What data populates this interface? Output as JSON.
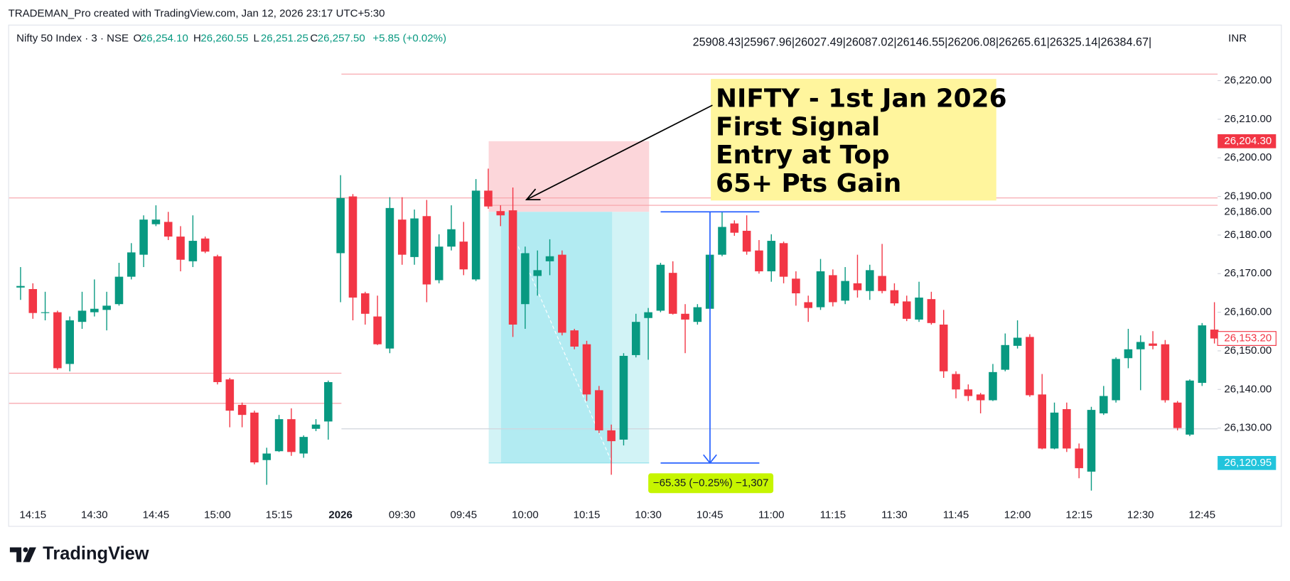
{
  "chart_data": {
    "type": "candlestick",
    "watermark": "TRADEMAN_Pro created with TradingView.com, Jan 12, 2026 23:17 UTC+5:30",
    "symbol": "Nifty 50 Index · 3 · NSE",
    "legend_ohlc": [
      {
        "key": "O",
        "value": "26,254.10"
      },
      {
        "key": "H",
        "value": "26,260.55"
      },
      {
        "key": "L",
        "value": "26,251.25"
      },
      {
        "key": "C",
        "value": "26,257.50"
      }
    ],
    "change": "+5.85 (+0.02%)",
    "levels_text": "25908.43|25967.96|26027.49|26087.02|26146.55|26206.08|26265.61|26325.14|26384.67|",
    "currency": "INR",
    "annotation": [
      "NIFTY - 1st Jan 2026",
      "First Signal",
      "Entry at Top",
      "65+ Pts Gain"
    ],
    "measure_label": "−65.35 (−0.25%) −1,307",
    "footer": "TradingView",
    "up_color": "#089981",
    "down_color": "#f23645",
    "categories": [
      null,
      "14:15",
      null,
      null,
      null,
      null,
      "14:30",
      null,
      null,
      null,
      null,
      "14:45",
      null,
      null,
      null,
      null,
      "15:00",
      null,
      null,
      null,
      null,
      "15:15",
      null,
      null,
      null,
      null,
      "2026",
      null,
      null,
      null,
      null,
      "09:30",
      null,
      null,
      null,
      null,
      "09:45",
      null,
      null,
      null,
      null,
      "10:00",
      null,
      null,
      null,
      null,
      "10:15",
      null,
      null,
      null,
      null,
      "10:30",
      null,
      null,
      null,
      null,
      "10:45",
      null,
      null,
      null,
      null,
      "11:00",
      null,
      null,
      null,
      null,
      "11:15",
      null,
      null,
      null,
      null,
      "11:30",
      null,
      null,
      null,
      null,
      "11:45",
      null,
      null,
      null,
      null,
      "12:00",
      null,
      null,
      null,
      null,
      "12:15",
      null,
      null,
      null,
      null,
      "12:30",
      null,
      null,
      null,
      null,
      "12:45",
      null
    ],
    "open": [
      26166.4,
      26166.0,
      26159.8,
      26160.0,
      26146.6,
      26157.5,
      26160.0,
      26160.6,
      26162.1,
      26169.2,
      26174.9,
      26182.8,
      26183.4,
      26179.6,
      26173.2,
      26179.1,
      26174.5,
      26142.6,
      26136.0,
      26134.0,
      26121.7,
      26124.0,
      26132.3,
      26123.4,
      26129.8,
      26131.7,
      26175.3,
      26190.0,
      26164.9,
      26158.9,
      26150.6,
      26184.0,
      26174.3,
      26184.9,
      26168.3,
      26177.0,
      26178.3,
      26168.5,
      26191.5,
      26186.2,
      26186.4,
      26162.1,
      26169.4,
      26173.2,
      26174.9,
      26155.3,
      26151.7,
      26139.8,
      26129.4,
      26127.0,
      26148.9,
      26158.5,
      26160.4,
      26170.2,
      26159.6,
      26157.5,
      26160.9,
      26174.9,
      26183.0,
      26181.1,
      26176.0,
      26170.6,
      26177.9,
      26168.7,
      26162.6,
      26161.3,
      26169.6,
      26163.0,
      26167.5,
      26165.5,
      26169.4,
      26165.7,
      26162.8,
      26158.1,
      26163.4,
      26156.8,
      26144.0,
      26140.0,
      26138.7,
      26137.2,
      26145.1,
      26151.3,
      26153.6,
      26138.7,
      26124.7,
      26134.9,
      26124.7,
      26118.7,
      26133.8,
      26137.2,
      26148.1,
      26150.4,
      26151.9,
      26151.7,
      26136.6,
      26128.3,
      26141.7,
      26155.5
    ],
    "high": [
      26171.7,
      26167.5,
      26165.3,
      26160.4,
      26158.9,
      26165.3,
      26168.5,
      26165.3,
      26172.8,
      26177.9,
      26185.1,
      26187.7,
      26186.0,
      26182.3,
      26185.1,
      26179.6,
      26174.9,
      26143.0,
      26136.6,
      26134.5,
      26124.9,
      26133.4,
      26135.1,
      26128.1,
      26132.3,
      26142.3,
      26195.5,
      26190.6,
      26165.3,
      26164.3,
      26189.8,
      26189.8,
      26186.6,
      26189.1,
      26180.2,
      26187.7,
      26183.4,
      26194.5,
      26197.2,
      26187.7,
      26192.3,
      26177.0,
      26176.0,
      26178.9,
      26176.0,
      26155.7,
      26152.6,
      26140.9,
      26130.9,
      26149.4,
      26159.6,
      26161.1,
      26172.8,
      26173.2,
      26162.1,
      26162.1,
      26175.7,
      26186.0,
      26183.8,
      26185.1,
      26178.7,
      26180.2,
      26178.3,
      26170.6,
      26164.3,
      26173.8,
      26171.1,
      26171.7,
      26174.9,
      26172.3,
      26177.7,
      26167.5,
      26164.3,
      26167.9,
      26165.3,
      26160.6,
      26144.7,
      26141.3,
      26139.1,
      26146.6,
      26154.5,
      26157.9,
      26154.3,
      26144.0,
      26136.6,
      26136.6,
      26126.0,
      26135.5,
      26140.9,
      26148.3,
      26155.7,
      26154.0,
      26155.1,
      26152.8,
      26137.0,
      26142.6,
      26157.2,
      26162.6
    ],
    "low": [
      26163.2,
      26158.3,
      26157.9,
      26145.1,
      26144.7,
      26155.7,
      26158.9,
      26155.3,
      26161.7,
      26168.5,
      26171.7,
      26182.3,
      26178.7,
      26170.6,
      26171.7,
      26175.3,
      26141.3,
      26130.2,
      26130.2,
      26120.6,
      26115.3,
      26123.8,
      26122.8,
      26122.3,
      26129.2,
      26127.0,
      26162.6,
      26157.9,
      26156.8,
      26151.5,
      26149.4,
      26172.3,
      26172.3,
      26162.6,
      26167.5,
      26176.0,
      26169.6,
      26168.1,
      26186.8,
      26182.3,
      26153.6,
      26155.7,
      26164.3,
      26169.6,
      26154.0,
      26150.4,
      26137.0,
      26128.7,
      26117.9,
      26125.5,
      26148.3,
      26147.7,
      26160.0,
      26159.4,
      26149.4,
      26156.8,
      26160.9,
      26174.5,
      26179.8,
      26174.9,
      26170.0,
      26167.9,
      26167.5,
      26161.7,
      26157.5,
      26160.6,
      26161.5,
      26162.1,
      26163.8,
      26163.2,
      26164.9,
      26161.7,
      26157.7,
      26157.5,
      26156.8,
      26143.0,
      26137.7,
      26137.0,
      26133.8,
      26137.0,
      26144.7,
      26150.6,
      26138.1,
      26124.5,
      26124.5,
      26123.8,
      26117.0,
      26113.8,
      26133.4,
      26136.6,
      26145.5,
      26139.8,
      26150.4,
      26136.6,
      26129.4,
      26127.9,
      26140.9,
      26151.9
    ],
    "close": [
      26166.8,
      26159.8,
      26160.0,
      26145.5,
      26157.9,
      26160.4,
      26160.9,
      26161.7,
      26169.2,
      26175.5,
      26184.0,
      26184.0,
      26179.6,
      26173.6,
      26178.5,
      26175.7,
      26141.9,
      26134.5,
      26133.4,
      26121.1,
      26123.4,
      26132.3,
      26123.8,
      26127.7,
      26130.9,
      26141.9,
      26189.6,
      26163.8,
      26159.6,
      26151.7,
      26187.0,
      26174.9,
      26184.3,
      26167.2,
      26177.0,
      26181.5,
      26171.1,
      26191.5,
      26187.4,
      26185.1,
      26156.8,
      26175.3,
      26170.9,
      26174.5,
      26154.7,
      26151.1,
      26138.7,
      26129.4,
      26126.6,
      26148.7,
      26157.5,
      26160.0,
      26172.3,
      26159.6,
      26158.1,
      26161.3,
      26174.9,
      26182.1,
      26180.6,
      26175.7,
      26170.6,
      26178.5,
      26169.2,
      26164.9,
      26161.1,
      26170.6,
      26162.6,
      26168.1,
      26165.7,
      26170.9,
      26165.5,
      26162.3,
      26158.3,
      26163.8,
      26157.2,
      26144.7,
      26140.0,
      26138.3,
      26137.2,
      26144.5,
      26151.5,
      26153.4,
      26138.5,
      26124.7,
      26134.0,
      26124.7,
      26119.6,
      26134.7,
      26138.3,
      26147.9,
      26150.4,
      26152.3,
      26151.3,
      26137.2,
      26130.0,
      26142.3,
      26156.6,
      26153.2
    ],
    "ylim": [
      26110.6,
      26234.5
    ],
    "yticks": [
      {
        "value": 26220,
        "label": "26,220.00"
      },
      {
        "value": 26210,
        "label": "26,210.00"
      },
      {
        "value": 26200,
        "label": "26,200.00"
      },
      {
        "value": 26190,
        "label": "26,190.00"
      },
      {
        "value": 26180,
        "label": "26,180.00"
      },
      {
        "value": 26170,
        "label": "26,170.00"
      },
      {
        "value": 26160,
        "label": "26,160.00"
      },
      {
        "value": 26150,
        "label": "26,150.00"
      },
      {
        "value": 26140,
        "label": "26,140.00"
      },
      {
        "value": 26130,
        "label": "26,130.00"
      }
    ],
    "hlines": [
      {
        "value": 26221.7,
        "color": "#f7a1a8"
      },
      {
        "value": 26189.6,
        "color": "#f7a1a8"
      },
      {
        "value": 26187.7,
        "color": "#f7a1a8"
      },
      {
        "value": 26144.2,
        "color": "#f7a1a8"
      },
      {
        "value": 26136.4,
        "color": "#f7a1a8"
      },
      {
        "value": 26129.8,
        "color": "#d1d4dc"
      }
    ],
    "position": {
      "stop": {
        "value": 26204.3,
        "label": "26,204.30"
      },
      "entry": {
        "value": 26186,
        "label": "26,186.00"
      },
      "target": {
        "value": 26120.95,
        "label": "26,120.95"
      }
    },
    "last_price": {
      "value": 26153.2,
      "label": "26,153.20"
    }
  }
}
